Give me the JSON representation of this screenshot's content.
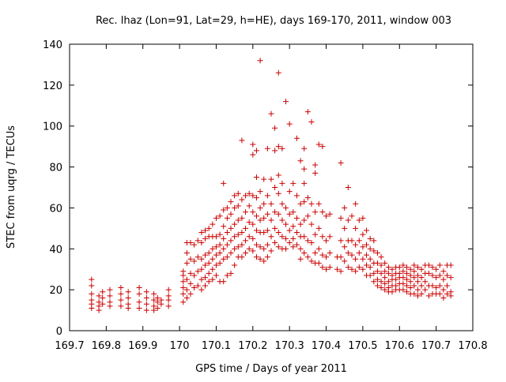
{
  "chart_data": {
    "type": "scatter",
    "title": "Rec. lhaz (Lon=91, Lat=29, h=HE), days 169-170, 2011, window 003",
    "xlabel": "GPS time / Days of year 2011",
    "ylabel": "STEC from uqrg / TECUs",
    "xlim": [
      169.7,
      170.8
    ],
    "ylim": [
      0,
      140
    ],
    "xticks": [
      "169.7",
      "169.8",
      "169.9",
      "170",
      "170.1",
      "170.2",
      "170.3",
      "170.4",
      "170.5",
      "170.6",
      "170.7",
      "170.8"
    ],
    "yticks": [
      "0",
      "20",
      "40",
      "60",
      "80",
      "100",
      "120",
      "140"
    ],
    "grid": false,
    "legend": "none",
    "marker": "plus",
    "color": "#cc0000",
    "points": [
      [
        169.76,
        25
      ],
      [
        169.76,
        22
      ],
      [
        169.76,
        18
      ],
      [
        169.76,
        15
      ],
      [
        169.76,
        13
      ],
      [
        169.76,
        11
      ],
      [
        169.78,
        17
      ],
      [
        169.78,
        14
      ],
      [
        169.78,
        12
      ],
      [
        169.78,
        10
      ],
      [
        169.79,
        19
      ],
      [
        169.79,
        16
      ],
      [
        169.79,
        13
      ],
      [
        169.81,
        20
      ],
      [
        169.81,
        17
      ],
      [
        169.81,
        14
      ],
      [
        169.81,
        12
      ],
      [
        169.84,
        21
      ],
      [
        169.84,
        18
      ],
      [
        169.84,
        15
      ],
      [
        169.84,
        12
      ],
      [
        169.86,
        19
      ],
      [
        169.86,
        16
      ],
      [
        169.86,
        13
      ],
      [
        169.86,
        11
      ],
      [
        169.89,
        21
      ],
      [
        169.89,
        18
      ],
      [
        169.89,
        14
      ],
      [
        169.89,
        11
      ],
      [
        169.91,
        19
      ],
      [
        169.91,
        16
      ],
      [
        169.91,
        13
      ],
      [
        169.91,
        10
      ],
      [
        169.93,
        18
      ],
      [
        169.93,
        15
      ],
      [
        169.93,
        12
      ],
      [
        169.93,
        10
      ],
      [
        169.94,
        16
      ],
      [
        169.94,
        14
      ],
      [
        169.94,
        11
      ],
      [
        169.95,
        15
      ],
      [
        169.95,
        13
      ],
      [
        169.97,
        20
      ],
      [
        169.97,
        17
      ],
      [
        169.97,
        15
      ],
      [
        169.97,
        12
      ],
      [
        170.01,
        29
      ],
      [
        170.01,
        27
      ],
      [
        170.01,
        24
      ],
      [
        170.01,
        21
      ],
      [
        170.01,
        18
      ],
      [
        170.01,
        14
      ],
      [
        170.02,
        43
      ],
      [
        170.02,
        38
      ],
      [
        170.02,
        33
      ],
      [
        170.02,
        25
      ],
      [
        170.02,
        20
      ],
      [
        170.02,
        16
      ],
      [
        170.03,
        43
      ],
      [
        170.03,
        35
      ],
      [
        170.03,
        28
      ],
      [
        170.03,
        23
      ],
      [
        170.03,
        18
      ],
      [
        170.04,
        42
      ],
      [
        170.04,
        34
      ],
      [
        170.04,
        27
      ],
      [
        170.04,
        21
      ],
      [
        170.05,
        44
      ],
      [
        170.05,
        36
      ],
      [
        170.05,
        29
      ],
      [
        170.05,
        22
      ],
      [
        170.06,
        48
      ],
      [
        170.06,
        43
      ],
      [
        170.06,
        35
      ],
      [
        170.06,
        30
      ],
      [
        170.06,
        25
      ],
      [
        170.06,
        20
      ],
      [
        170.07,
        49
      ],
      [
        170.07,
        45
      ],
      [
        170.07,
        37
      ],
      [
        170.07,
        32
      ],
      [
        170.07,
        26
      ],
      [
        170.07,
        22
      ],
      [
        170.08,
        50
      ],
      [
        170.08,
        46
      ],
      [
        170.08,
        38
      ],
      [
        170.08,
        33
      ],
      [
        170.08,
        28
      ],
      [
        170.08,
        24
      ],
      [
        170.09,
        52
      ],
      [
        170.09,
        46
      ],
      [
        170.09,
        40
      ],
      [
        170.09,
        35
      ],
      [
        170.09,
        30
      ],
      [
        170.09,
        25
      ],
      [
        170.1,
        55
      ],
      [
        170.1,
        46
      ],
      [
        170.1,
        41
      ],
      [
        170.1,
        37
      ],
      [
        170.1,
        32
      ],
      [
        170.1,
        27
      ],
      [
        170.11,
        56
      ],
      [
        170.11,
        47
      ],
      [
        170.11,
        42
      ],
      [
        170.11,
        38
      ],
      [
        170.11,
        33
      ],
      [
        170.11,
        24
      ],
      [
        170.12,
        72
      ],
      [
        170.12,
        59
      ],
      [
        170.12,
        51
      ],
      [
        170.12,
        45
      ],
      [
        170.12,
        40
      ],
      [
        170.12,
        35
      ],
      [
        170.12,
        24
      ],
      [
        170.13,
        60
      ],
      [
        170.13,
        55
      ],
      [
        170.13,
        48
      ],
      [
        170.13,
        42
      ],
      [
        170.13,
        36
      ],
      [
        170.13,
        27
      ],
      [
        170.14,
        63
      ],
      [
        170.14,
        57
      ],
      [
        170.14,
        50
      ],
      [
        170.14,
        44
      ],
      [
        170.14,
        38
      ],
      [
        170.14,
        28
      ],
      [
        170.15,
        66
      ],
      [
        170.15,
        60
      ],
      [
        170.15,
        52
      ],
      [
        170.15,
        46
      ],
      [
        170.15,
        40
      ],
      [
        170.15,
        32
      ],
      [
        170.16,
        67
      ],
      [
        170.16,
        61
      ],
      [
        170.16,
        54
      ],
      [
        170.16,
        47
      ],
      [
        170.16,
        41
      ],
      [
        170.16,
        36
      ],
      [
        170.17,
        93
      ],
      [
        170.17,
        64
      ],
      [
        170.17,
        55
      ],
      [
        170.17,
        48
      ],
      [
        170.17,
        42
      ],
      [
        170.17,
        36
      ],
      [
        170.18,
        66
      ],
      [
        170.18,
        58
      ],
      [
        170.18,
        50
      ],
      [
        170.18,
        44
      ],
      [
        170.18,
        38
      ],
      [
        170.19,
        67
      ],
      [
        170.19,
        61
      ],
      [
        170.19,
        53
      ],
      [
        170.19,
        46
      ],
      [
        170.19,
        40
      ],
      [
        170.2,
        91
      ],
      [
        170.2,
        86
      ],
      [
        170.2,
        66
      ],
      [
        170.2,
        58
      ],
      [
        170.2,
        52
      ],
      [
        170.2,
        45
      ],
      [
        170.2,
        39
      ],
      [
        170.21,
        88
      ],
      [
        170.21,
        75
      ],
      [
        170.21,
        65
      ],
      [
        170.21,
        56
      ],
      [
        170.21,
        49
      ],
      [
        170.21,
        42
      ],
      [
        170.21,
        36
      ],
      [
        170.22,
        132
      ],
      [
        170.22,
        68
      ],
      [
        170.22,
        60
      ],
      [
        170.22,
        54
      ],
      [
        170.22,
        48
      ],
      [
        170.22,
        41
      ],
      [
        170.22,
        35
      ],
      [
        170.23,
        74
      ],
      [
        170.23,
        62
      ],
      [
        170.23,
        55
      ],
      [
        170.23,
        48
      ],
      [
        170.23,
        40
      ],
      [
        170.23,
        34
      ],
      [
        170.24,
        89
      ],
      [
        170.24,
        66
      ],
      [
        170.24,
        57
      ],
      [
        170.24,
        49
      ],
      [
        170.24,
        42
      ],
      [
        170.24,
        36
      ],
      [
        170.25,
        106
      ],
      [
        170.25,
        74
      ],
      [
        170.25,
        62
      ],
      [
        170.25,
        54
      ],
      [
        170.25,
        46
      ],
      [
        170.25,
        39
      ],
      [
        170.26,
        99
      ],
      [
        170.26,
        88
      ],
      [
        170.26,
        70
      ],
      [
        170.26,
        58
      ],
      [
        170.26,
        50
      ],
      [
        170.26,
        43
      ],
      [
        170.27,
        126
      ],
      [
        170.27,
        90
      ],
      [
        170.27,
        76
      ],
      [
        170.27,
        67
      ],
      [
        170.27,
        57
      ],
      [
        170.27,
        48
      ],
      [
        170.27,
        41
      ],
      [
        170.28,
        89
      ],
      [
        170.28,
        72
      ],
      [
        170.28,
        62
      ],
      [
        170.28,
        54
      ],
      [
        170.28,
        46
      ],
      [
        170.28,
        40
      ],
      [
        170.29,
        112
      ],
      [
        170.29,
        60
      ],
      [
        170.29,
        52
      ],
      [
        170.29,
        45
      ],
      [
        170.29,
        40
      ],
      [
        170.3,
        101
      ],
      [
        170.3,
        68
      ],
      [
        170.3,
        57
      ],
      [
        170.3,
        49
      ],
      [
        170.3,
        43
      ],
      [
        170.31,
        72
      ],
      [
        170.31,
        58
      ],
      [
        170.31,
        51
      ],
      [
        170.31,
        45
      ],
      [
        170.31,
        41
      ],
      [
        170.32,
        94
      ],
      [
        170.32,
        66
      ],
      [
        170.32,
        55
      ],
      [
        170.32,
        48
      ],
      [
        170.32,
        42
      ],
      [
        170.33,
        83
      ],
      [
        170.33,
        62
      ],
      [
        170.33,
        52
      ],
      [
        170.33,
        46
      ],
      [
        170.33,
        40
      ],
      [
        170.33,
        35
      ],
      [
        170.34,
        89
      ],
      [
        170.34,
        79
      ],
      [
        170.34,
        72
      ],
      [
        170.34,
        63
      ],
      [
        170.34,
        54
      ],
      [
        170.34,
        46
      ],
      [
        170.34,
        38
      ],
      [
        170.35,
        107
      ],
      [
        170.35,
        65
      ],
      [
        170.35,
        56
      ],
      [
        170.35,
        44
      ],
      [
        170.35,
        36
      ],
      [
        170.36,
        102
      ],
      [
        170.36,
        62
      ],
      [
        170.36,
        52
      ],
      [
        170.36,
        43
      ],
      [
        170.36,
        34
      ],
      [
        170.37,
        81
      ],
      [
        170.37,
        77
      ],
      [
        170.37,
        58
      ],
      [
        170.37,
        47
      ],
      [
        170.37,
        38
      ],
      [
        170.37,
        33
      ],
      [
        170.38,
        91
      ],
      [
        170.38,
        62
      ],
      [
        170.38,
        50
      ],
      [
        170.38,
        40
      ],
      [
        170.38,
        33
      ],
      [
        170.39,
        90
      ],
      [
        170.39,
        58
      ],
      [
        170.39,
        46
      ],
      [
        170.39,
        37
      ],
      [
        170.39,
        31
      ],
      [
        170.4,
        56
      ],
      [
        170.4,
        44
      ],
      [
        170.4,
        36
      ],
      [
        170.4,
        30
      ],
      [
        170.41,
        57
      ],
      [
        170.41,
        46
      ],
      [
        170.41,
        38
      ],
      [
        170.41,
        31
      ],
      [
        170.43,
        36
      ],
      [
        170.43,
        30
      ],
      [
        170.44,
        82
      ],
      [
        170.44,
        55
      ],
      [
        170.44,
        44
      ],
      [
        170.44,
        36
      ],
      [
        170.44,
        29
      ],
      [
        170.45,
        60
      ],
      [
        170.45,
        50
      ],
      [
        170.45,
        41
      ],
      [
        170.45,
        34
      ],
      [
        170.46,
        70
      ],
      [
        170.46,
        54
      ],
      [
        170.46,
        44
      ],
      [
        170.46,
        38
      ],
      [
        170.46,
        31
      ],
      [
        170.47,
        56
      ],
      [
        170.47,
        44
      ],
      [
        170.47,
        37
      ],
      [
        170.47,
        30
      ],
      [
        170.48,
        62
      ],
      [
        170.48,
        50
      ],
      [
        170.48,
        42
      ],
      [
        170.48,
        35
      ],
      [
        170.48,
        29
      ],
      [
        170.49,
        54
      ],
      [
        170.49,
        44
      ],
      [
        170.49,
        38
      ],
      [
        170.49,
        31
      ],
      [
        170.5,
        55
      ],
      [
        170.5,
        47
      ],
      [
        170.5,
        41
      ],
      [
        170.5,
        35
      ],
      [
        170.5,
        30
      ],
      [
        170.51,
        49
      ],
      [
        170.51,
        42
      ],
      [
        170.51,
        37
      ],
      [
        170.51,
        32
      ],
      [
        170.51,
        27
      ],
      [
        170.52,
        45
      ],
      [
        170.52,
        40
      ],
      [
        170.52,
        35
      ],
      [
        170.52,
        31
      ],
      [
        170.52,
        27
      ],
      [
        170.53,
        44
      ],
      [
        170.53,
        39
      ],
      [
        170.53,
        33
      ],
      [
        170.53,
        28
      ],
      [
        170.53,
        24
      ],
      [
        170.54,
        38
      ],
      [
        170.54,
        33
      ],
      [
        170.54,
        29
      ],
      [
        170.54,
        25
      ],
      [
        170.54,
        22
      ],
      [
        170.55,
        36
      ],
      [
        170.55,
        32
      ],
      [
        170.55,
        28
      ],
      [
        170.55,
        24
      ],
      [
        170.55,
        21
      ],
      [
        170.56,
        33
      ],
      [
        170.56,
        29
      ],
      [
        170.56,
        26
      ],
      [
        170.56,
        23
      ],
      [
        170.56,
        20
      ],
      [
        170.57,
        31
      ],
      [
        170.57,
        28
      ],
      [
        170.57,
        24
      ],
      [
        170.57,
        21
      ],
      [
        170.57,
        19
      ],
      [
        170.58,
        30
      ],
      [
        170.58,
        27
      ],
      [
        170.58,
        25
      ],
      [
        170.58,
        22
      ],
      [
        170.58,
        19
      ],
      [
        170.59,
        31
      ],
      [
        170.59,
        28
      ],
      [
        170.59,
        25
      ],
      [
        170.59,
        22
      ],
      [
        170.59,
        20
      ],
      [
        170.6,
        31
      ],
      [
        170.6,
        28
      ],
      [
        170.6,
        26
      ],
      [
        170.6,
        23
      ],
      [
        170.6,
        20
      ],
      [
        170.61,
        32
      ],
      [
        170.61,
        29
      ],
      [
        170.61,
        26
      ],
      [
        170.61,
        23
      ],
      [
        170.61,
        20
      ],
      [
        170.62,
        31
      ],
      [
        170.62,
        28
      ],
      [
        170.62,
        25
      ],
      [
        170.62,
        22
      ],
      [
        170.62,
        19
      ],
      [
        170.63,
        30
      ],
      [
        170.63,
        27
      ],
      [
        170.63,
        24
      ],
      [
        170.63,
        21
      ],
      [
        170.63,
        18
      ],
      [
        170.64,
        32
      ],
      [
        170.64,
        29
      ],
      [
        170.64,
        26
      ],
      [
        170.64,
        22
      ],
      [
        170.64,
        18
      ],
      [
        170.65,
        31
      ],
      [
        170.65,
        27
      ],
      [
        170.65,
        24
      ],
      [
        170.65,
        20
      ],
      [
        170.65,
        17
      ],
      [
        170.66,
        30
      ],
      [
        170.66,
        26
      ],
      [
        170.66,
        22
      ],
      [
        170.66,
        18
      ],
      [
        170.67,
        32
      ],
      [
        170.67,
        28
      ],
      [
        170.67,
        24
      ],
      [
        170.67,
        20
      ],
      [
        170.68,
        32
      ],
      [
        170.68,
        28
      ],
      [
        170.68,
        22
      ],
      [
        170.68,
        17
      ],
      [
        170.69,
        31
      ],
      [
        170.69,
        27
      ],
      [
        170.69,
        22
      ],
      [
        170.69,
        18
      ],
      [
        170.7,
        30
      ],
      [
        170.7,
        26
      ],
      [
        170.7,
        21
      ],
      [
        170.7,
        18
      ],
      [
        170.71,
        32
      ],
      [
        170.71,
        27
      ],
      [
        170.71,
        22
      ],
      [
        170.71,
        18
      ],
      [
        170.72,
        29
      ],
      [
        170.72,
        25
      ],
      [
        170.72,
        20
      ],
      [
        170.72,
        16
      ],
      [
        170.73,
        32
      ],
      [
        170.73,
        27
      ],
      [
        170.73,
        22
      ],
      [
        170.73,
        18
      ],
      [
        170.74,
        32
      ],
      [
        170.74,
        26
      ],
      [
        170.74,
        19
      ],
      [
        170.74,
        17
      ]
    ]
  }
}
